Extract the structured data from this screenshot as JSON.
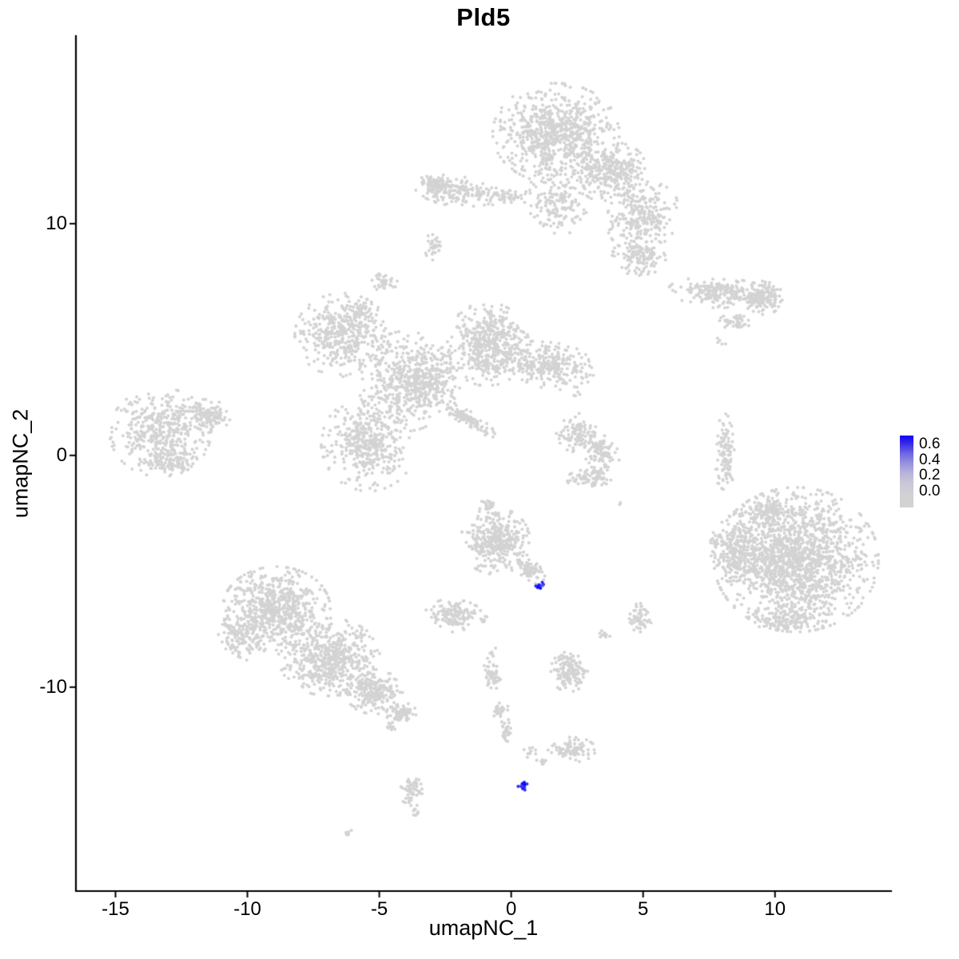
{
  "title": "Pld5",
  "x_axis_label": "umapNC_1",
  "y_axis_label": "umapNC_2",
  "legend": {
    "tick_labels": [
      "0.6",
      "0.4",
      "0.2",
      "0.0"
    ],
    "color_high": "#0000FF",
    "color_low": "#D3D3D3"
  },
  "chart_data": {
    "type": "scatter",
    "title": "Pld5",
    "xlabel": "umapNC_1",
    "ylabel": "umapNC_2",
    "xlim": [
      -16.5,
      14.4
    ],
    "ylim": [
      -18.8,
      18.1
    ],
    "x_ticks": [
      -15,
      -10,
      -5,
      0,
      5,
      10
    ],
    "y_ticks": [
      -10,
      0,
      10
    ],
    "grid": false,
    "legend_position": "right",
    "legend_values": [
      0.6,
      0.4,
      0.2,
      0.0
    ],
    "color_low": "#D3D3D3",
    "color_high": "#0000FF",
    "scale_max": 0.65,
    "point_radius": 2,
    "clusters": [
      {
        "cx": 1.7,
        "cy": 13.9,
        "rx": 2.0,
        "ry": 1.8,
        "n": 750
      },
      {
        "cx": 3.8,
        "cy": 12.2,
        "rx": 1.2,
        "ry": 1.1,
        "n": 300
      },
      {
        "cx": 5.0,
        "cy": 10.3,
        "rx": 1.1,
        "ry": 1.3,
        "n": 250,
        "angle": -30
      },
      {
        "cx": 4.9,
        "cy": 8.6,
        "rx": 0.9,
        "ry": 0.7,
        "n": 120
      },
      {
        "cx": 1.7,
        "cy": 10.9,
        "rx": 1.0,
        "ry": 1.2,
        "n": 150
      },
      {
        "cx": -2.0,
        "cy": 11.4,
        "rx": 1.5,
        "ry": 0.55,
        "n": 160,
        "angle": -8
      },
      {
        "cx": -2.9,
        "cy": 11.6,
        "rx": 0.5,
        "ry": 0.5,
        "n": 60
      },
      {
        "cx": -0.2,
        "cy": 11.2,
        "rx": 0.8,
        "ry": 0.35,
        "n": 50
      },
      {
        "cx": -2.9,
        "cy": 9.0,
        "rx": 0.35,
        "ry": 0.5,
        "n": 35
      },
      {
        "cx": -4.8,
        "cy": 7.5,
        "rx": 0.4,
        "ry": 0.35,
        "n": 35
      },
      {
        "cx": 8.0,
        "cy": 7.0,
        "rx": 1.7,
        "ry": 0.55,
        "n": 220,
        "angle": -5
      },
      {
        "cx": 9.5,
        "cy": 6.8,
        "rx": 0.7,
        "ry": 0.6,
        "n": 150
      },
      {
        "cx": 8.5,
        "cy": 5.8,
        "rx": 0.5,
        "ry": 0.3,
        "n": 40
      },
      {
        "cx": 7.9,
        "cy": 4.9,
        "rx": 0.2,
        "ry": 0.2,
        "n": 5
      },
      {
        "cx": -6.4,
        "cy": 5.2,
        "rx": 1.5,
        "ry": 1.5,
        "n": 380
      },
      {
        "cx": -5.8,
        "cy": 6.2,
        "rx": 0.6,
        "ry": 0.4,
        "n": 60
      },
      {
        "cx": -4.0,
        "cy": 3.2,
        "rx": 1.5,
        "ry": 1.8,
        "n": 420
      },
      {
        "cx": -0.9,
        "cy": 4.8,
        "rx": 1.3,
        "ry": 1.5,
        "n": 500
      },
      {
        "cx": 1.5,
        "cy": 3.9,
        "rx": 1.4,
        "ry": 0.85,
        "n": 280,
        "angle": -12
      },
      {
        "cx": -5.4,
        "cy": 0.5,
        "rx": 1.5,
        "ry": 1.7,
        "n": 420
      },
      {
        "cx": -1.7,
        "cy": 1.6,
        "rx": 1.1,
        "ry": 0.28,
        "n": 110,
        "angle": -35
      },
      {
        "cx": -3.0,
        "cy": 3.3,
        "rx": 1.0,
        "ry": 1.2,
        "n": 180
      },
      {
        "cx": -13.3,
        "cy": 1.0,
        "rx": 1.6,
        "ry": 1.6,
        "n": 420
      },
      {
        "cx": -11.6,
        "cy": 1.7,
        "rx": 0.8,
        "ry": 0.6,
        "n": 120
      },
      {
        "cx": -12.9,
        "cy": -0.3,
        "rx": 0.9,
        "ry": 0.4,
        "n": 80
      },
      {
        "cx": 2.4,
        "cy": 0.9,
        "rx": 0.6,
        "ry": 0.8,
        "n": 90
      },
      {
        "cx": 3.4,
        "cy": 0.2,
        "rx": 0.55,
        "ry": 0.9,
        "n": 110,
        "angle": 20
      },
      {
        "cx": 3.0,
        "cy": -1.0,
        "rx": 0.8,
        "ry": 0.4,
        "n": 80,
        "angle": 10
      },
      {
        "cx": 2.5,
        "cy": 2.6,
        "rx": 0.15,
        "ry": 0.15,
        "n": 4
      },
      {
        "cx": 8.1,
        "cy": 0.0,
        "rx": 0.3,
        "ry": 1.5,
        "n": 110
      },
      {
        "cx": 10.8,
        "cy": -4.5,
        "rx": 2.6,
        "ry": 2.6,
        "n": 1600
      },
      {
        "cx": 8.6,
        "cy": -4.1,
        "rx": 0.9,
        "ry": 1.3,
        "n": 250
      },
      {
        "cx": 9.7,
        "cy": -2.4,
        "rx": 0.8,
        "ry": 0.5,
        "n": 100
      },
      {
        "cx": 10.5,
        "cy": -7.1,
        "rx": 1.2,
        "ry": 0.5,
        "n": 120
      },
      {
        "cx": -0.6,
        "cy": -3.7,
        "rx": 1.1,
        "ry": 1.2,
        "n": 380
      },
      {
        "cx": 0.7,
        "cy": -5.0,
        "rx": 0.55,
        "ry": 0.35,
        "n": 70,
        "angle": -40
      },
      {
        "cx": -0.9,
        "cy": -2.1,
        "rx": 0.3,
        "ry": 0.4,
        "n": 18
      },
      {
        "cx": -2.2,
        "cy": -6.9,
        "rx": 0.9,
        "ry": 0.6,
        "n": 140
      },
      {
        "cx": -1.0,
        "cy": -7.1,
        "rx": 0.15,
        "ry": 0.15,
        "n": 8
      },
      {
        "cx": -0.8,
        "cy": -8.5,
        "rx": 0.2,
        "ry": 0.3,
        "n": 6
      },
      {
        "cx": 4.9,
        "cy": -7.0,
        "rx": 0.35,
        "ry": 0.55,
        "n": 60
      },
      {
        "cx": 3.5,
        "cy": -7.8,
        "rx": 0.2,
        "ry": 0.2,
        "n": 10
      },
      {
        "cx": 4.1,
        "cy": -2.1,
        "rx": 0.1,
        "ry": 0.1,
        "n": 2
      },
      {
        "cx": -8.9,
        "cy": -6.6,
        "rx": 1.7,
        "ry": 1.5,
        "n": 650
      },
      {
        "cx": -6.9,
        "cy": -8.7,
        "rx": 1.6,
        "ry": 1.4,
        "n": 550
      },
      {
        "cx": -5.2,
        "cy": -10.2,
        "rx": 0.9,
        "ry": 0.8,
        "n": 220
      },
      {
        "cx": -10.2,
        "cy": -7.9,
        "rx": 0.8,
        "ry": 0.9,
        "n": 140
      },
      {
        "cx": -4.2,
        "cy": -11.1,
        "rx": 0.5,
        "ry": 0.4,
        "n": 70
      },
      {
        "cx": -4.5,
        "cy": -11.7,
        "rx": 0.2,
        "ry": 0.2,
        "n": 12
      },
      {
        "cx": -0.7,
        "cy": -9.5,
        "rx": 0.3,
        "ry": 0.5,
        "n": 45,
        "angle": 15
      },
      {
        "cx": -0.4,
        "cy": -11.0,
        "rx": 0.25,
        "ry": 0.35,
        "n": 30
      },
      {
        "cx": -0.2,
        "cy": -11.9,
        "rx": 0.2,
        "ry": 0.45,
        "n": 30
      },
      {
        "cx": 2.2,
        "cy": -9.3,
        "rx": 0.6,
        "ry": 0.75,
        "n": 140
      },
      {
        "cx": 2.3,
        "cy": -12.7,
        "rx": 0.75,
        "ry": 0.45,
        "n": 90
      },
      {
        "cx": 0.7,
        "cy": -12.8,
        "rx": 0.2,
        "ry": 0.2,
        "n": 12
      },
      {
        "cx": 1.2,
        "cy": -13.2,
        "rx": 0.2,
        "ry": 0.15,
        "n": 10
      },
      {
        "cx": -3.8,
        "cy": -14.5,
        "rx": 0.35,
        "ry": 0.6,
        "n": 60
      },
      {
        "cx": -3.6,
        "cy": -15.4,
        "rx": 0.15,
        "ry": 0.15,
        "n": 8
      },
      {
        "cx": -6.2,
        "cy": -16.3,
        "rx": 0.25,
        "ry": 0.15,
        "n": 8
      }
    ],
    "highlights": [
      {
        "cx": 1.06,
        "cy": -5.62,
        "rx": 0.14,
        "ry": 0.16,
        "n": 12,
        "value_min": 0.35,
        "value_max": 0.68
      },
      {
        "cx": 0.48,
        "cy": -14.24,
        "rx": 0.16,
        "ry": 0.24,
        "n": 14,
        "angle": -30,
        "value_min": 0.4,
        "value_max": 0.7
      }
    ]
  }
}
